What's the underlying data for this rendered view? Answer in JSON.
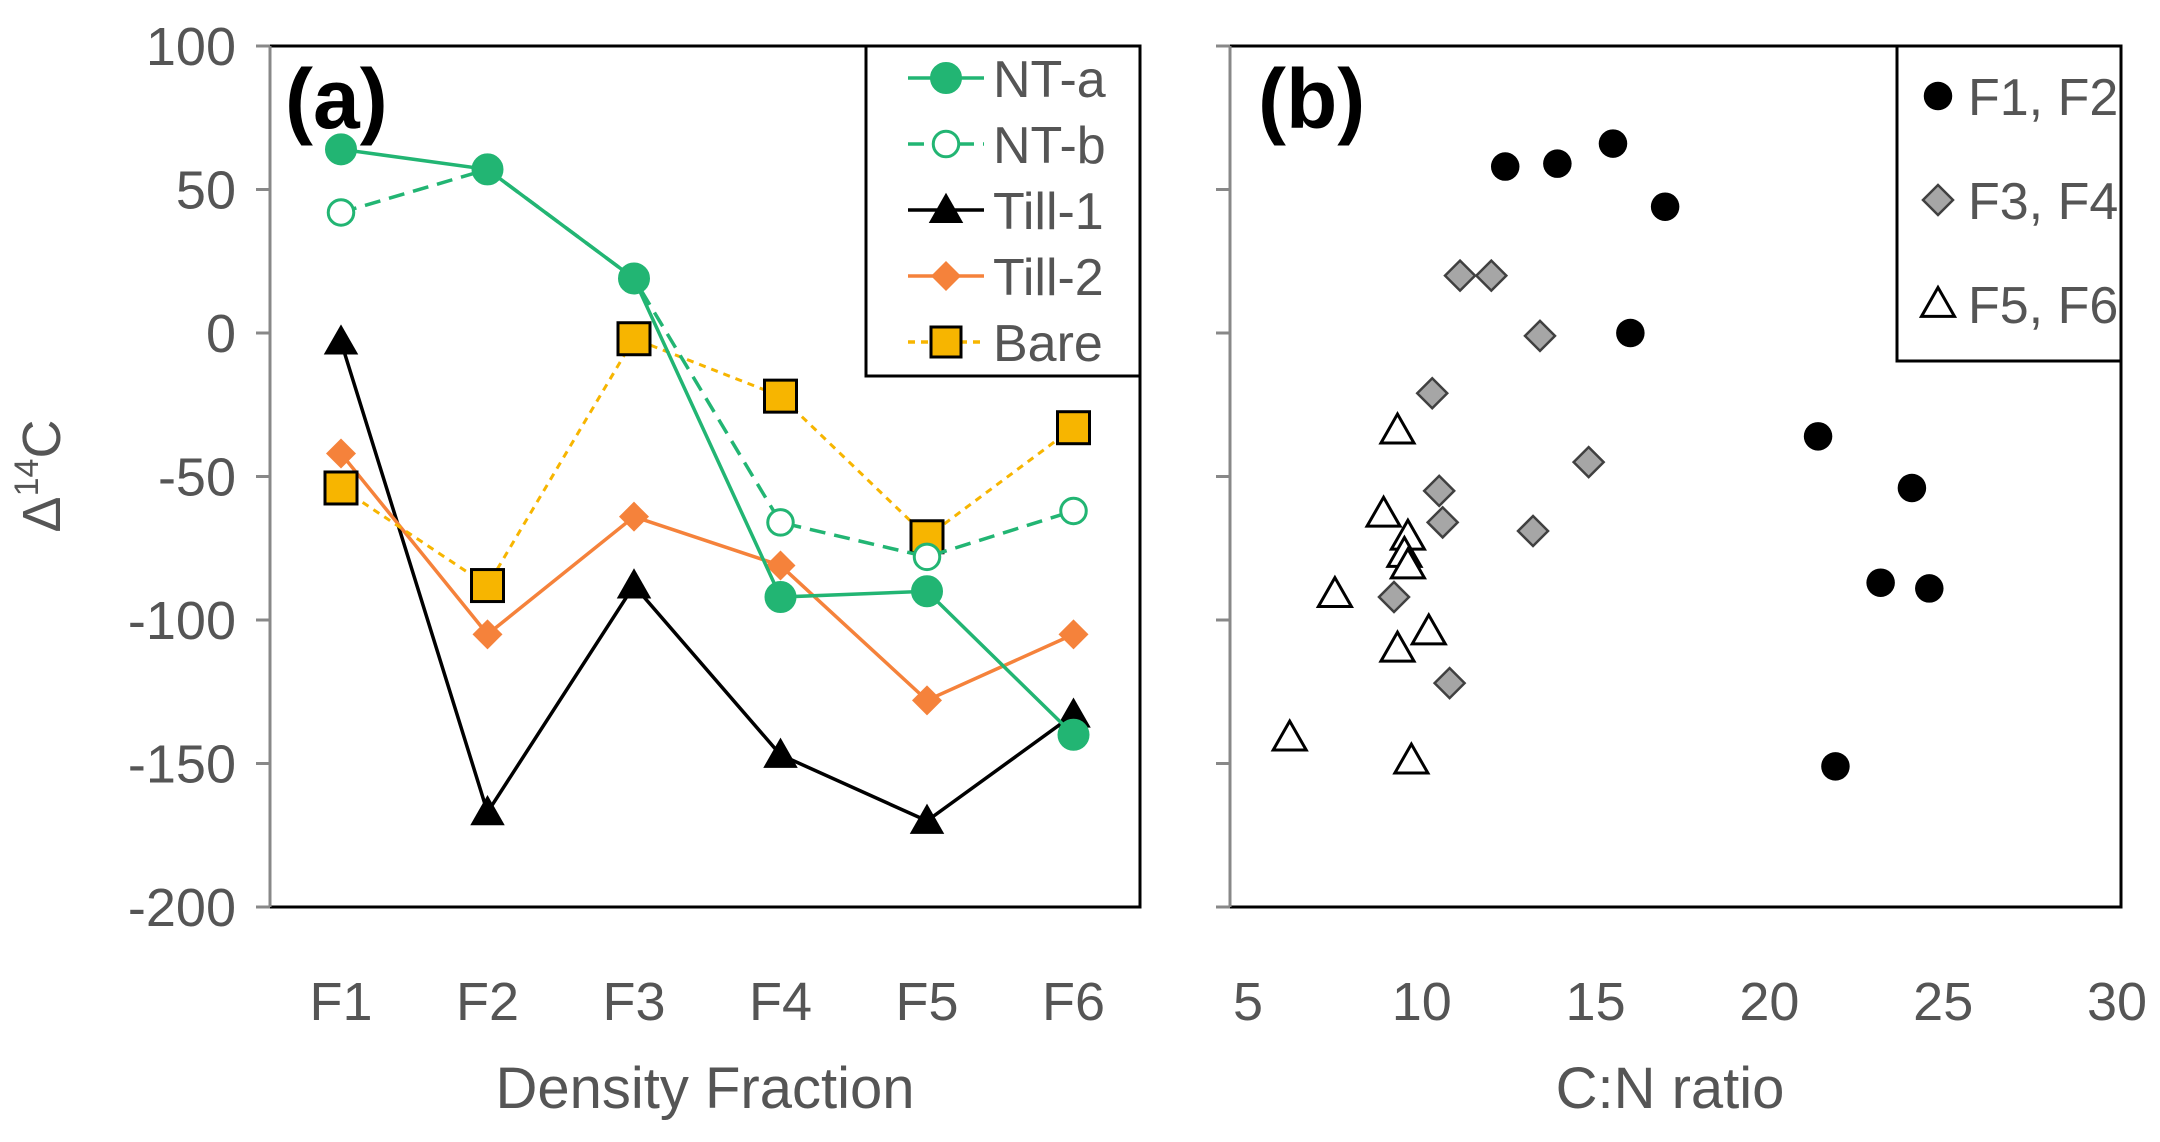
{
  "chart_data": [
    {
      "type": "line",
      "panel_label": "(a)",
      "xlabel": "Density Fraction",
      "ylabel_main": "Δ",
      "ylabel_sup": "14",
      "ylabel_tail": "C",
      "categories": [
        "F1",
        "F2",
        "F3",
        "F4",
        "F5",
        "F6"
      ],
      "ylim": [
        -200,
        100
      ],
      "yticks": [
        "100",
        "50",
        "0",
        "-50",
        "-100",
        "-150",
        "-200"
      ],
      "ytick_values": [
        100,
        50,
        0,
        -50,
        -100,
        -150,
        -200
      ],
      "grid": false,
      "legend_position": "top-right",
      "series": [
        {
          "name": "NT-a",
          "color": "#22b573",
          "marker": "circle-filled",
          "line": "solid",
          "values": [
            64,
            57,
            19,
            -92,
            -90,
            -140
          ]
        },
        {
          "name": "NT-b",
          "color": "#22b573",
          "marker": "circle-open",
          "line": "dashed",
          "values": [
            42,
            57,
            19,
            -66,
            -78,
            -62
          ]
        },
        {
          "name": "Till-1",
          "color": "#000000",
          "marker": "triangle-filled",
          "line": "solid",
          "values": [
            -3,
            -167,
            -88,
            -147,
            -170,
            -133
          ]
        },
        {
          "name": "Till-2",
          "color": "#f5823b",
          "marker": "diamond-filled",
          "line": "solid",
          "values": [
            -42,
            -105,
            -64,
            -81,
            -128,
            -105
          ]
        },
        {
          "name": "Bare",
          "color": "#f7b500",
          "marker": "square-filled",
          "line": "dotted",
          "values": [
            -54,
            -88,
            -2,
            -22,
            -71,
            -33
          ]
        }
      ]
    },
    {
      "type": "scatter",
      "panel_label": "(b)",
      "xlabel": "C:N ratio",
      "xlim": [
        5,
        30
      ],
      "xticks": [
        "5",
        "10",
        "15",
        "20",
        "25",
        "30"
      ],
      "xtick_values": [
        5,
        10,
        15,
        20,
        25,
        30
      ],
      "ylim": [
        -200,
        100
      ],
      "grid": false,
      "legend_position": "top-right",
      "series": [
        {
          "name": "F1, F2",
          "marker": "circle-black",
          "points": [
            [
              12.4,
              58
            ],
            [
              13.9,
              59
            ],
            [
              15.5,
              66
            ],
            [
              17.0,
              44
            ],
            [
              16.0,
              0
            ],
            [
              21.4,
              -36
            ],
            [
              24.1,
              -54
            ],
            [
              23.2,
              -87
            ],
            [
              24.6,
              -89
            ],
            [
              21.9,
              -151
            ]
          ]
        },
        {
          "name": "F3, F4",
          "marker": "diamond-gray",
          "points": [
            [
              11.1,
              20
            ],
            [
              12.0,
              20
            ],
            [
              13.4,
              -1
            ],
            [
              10.3,
              -21
            ],
            [
              14.8,
              -45
            ],
            [
              10.5,
              -55
            ],
            [
              10.6,
              -66
            ],
            [
              13.2,
              -69
            ],
            [
              9.2,
              -92
            ],
            [
              10.8,
              -122
            ]
          ]
        },
        {
          "name": "F5, F6",
          "marker": "triangle-open",
          "points": [
            [
              9.3,
              -34
            ],
            [
              8.9,
              -63
            ],
            [
              9.6,
              -71
            ],
            [
              9.5,
              -77
            ],
            [
              9.6,
              -81
            ],
            [
              7.5,
              -91
            ],
            [
              10.2,
              -104
            ],
            [
              9.3,
              -110
            ],
            [
              6.2,
              -141
            ],
            [
              9.7,
              -149
            ]
          ]
        }
      ]
    }
  ]
}
